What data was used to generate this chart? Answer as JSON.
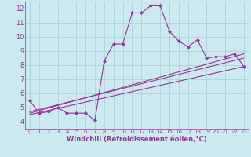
{
  "background_color": "#cceaed",
  "grid_color": "#aad4d8",
  "line_color": "#993399",
  "marker_color": "#993399",
  "xlabel": "Windchill (Refroidissement éolien,°C)",
  "xlim": [
    -0.5,
    23.5
  ],
  "ylim": [
    3.5,
    12.5
  ],
  "yticks": [
    4,
    5,
    6,
    7,
    8,
    9,
    10,
    11,
    12
  ],
  "xticks": [
    0,
    1,
    2,
    3,
    4,
    5,
    6,
    7,
    8,
    9,
    10,
    11,
    12,
    13,
    14,
    15,
    16,
    17,
    18,
    19,
    20,
    21,
    22,
    23
  ],
  "series": [
    {
      "x": [
        0,
        1,
        2,
        3,
        4,
        5,
        6,
        7,
        8,
        9,
        10,
        11,
        12,
        13,
        14,
        15,
        16,
        17,
        18,
        19,
        20,
        21,
        22,
        23
      ],
      "y": [
        5.5,
        4.6,
        4.7,
        5.0,
        4.6,
        4.6,
        4.6,
        4.1,
        8.3,
        9.5,
        9.5,
        11.7,
        11.7,
        12.2,
        12.2,
        10.4,
        9.7,
        9.3,
        9.8,
        8.5,
        8.6,
        8.6,
        8.8,
        7.9
      ],
      "markers": true
    },
    {
      "x": [
        0,
        23
      ],
      "y": [
        4.5,
        7.9
      ],
      "markers": false
    },
    {
      "x": [
        0,
        23
      ],
      "y": [
        4.6,
        8.8
      ],
      "markers": false
    },
    {
      "x": [
        0,
        23
      ],
      "y": [
        4.7,
        8.5
      ],
      "markers": false
    }
  ],
  "spine_color": "#993399",
  "tick_label_color": "#993399",
  "xlabel_color": "#993399",
  "xlabel_fontsize": 6,
  "ytick_fontsize": 6,
  "xtick_fontsize": 5
}
